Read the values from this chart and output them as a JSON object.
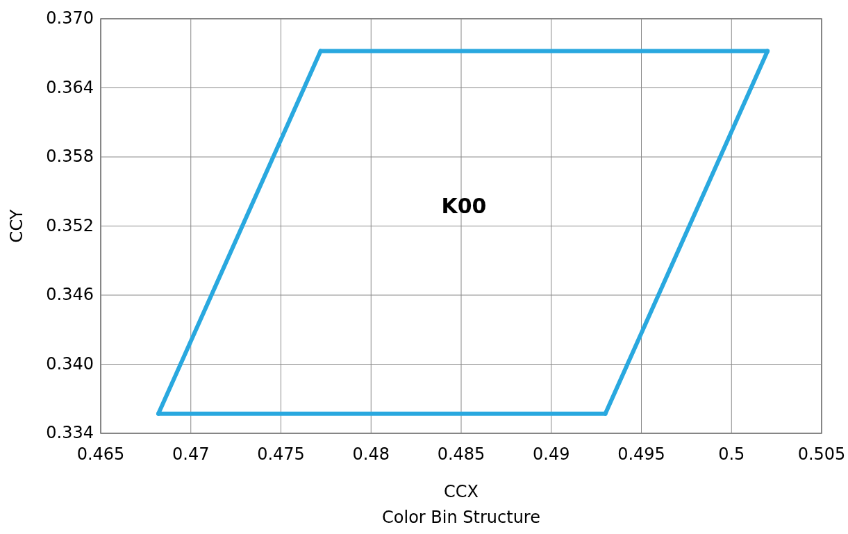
{
  "chart_data": {
    "type": "line",
    "title": "Color Bin Structure",
    "xlabel": "CCX",
    "ylabel": "CCY",
    "series": [
      {
        "color": "#29a8df",
        "x": [
          0.4682,
          0.4772
        ],
        "values": [
          0.3357,
          0.3672
        ]
      },
      {
        "color": "#29a8df",
        "x": [
          0.4772,
          0.502
        ],
        "values": [
          0.3672,
          0.3672
        ]
      },
      {
        "color": "#29a8df",
        "x": [
          0.493,
          0.502
        ],
        "values": [
          0.3357,
          0.3672
        ]
      },
      {
        "color": "#29a8df",
        "x": [
          0.4682,
          0.493
        ],
        "values": [
          0.3357,
          0.3357
        ]
      }
    ],
    "xlim": [
      0.465,
      0.505
    ],
    "xticks": [
      0.465,
      0.47,
      0.475,
      0.48,
      0.485,
      0.49,
      0.495,
      0.5,
      0.505
    ],
    "ylim": [
      0.334,
      0.37
    ],
    "yticks": [
      0.334,
      {
        "value": 0.34,
        "label": "0.340"
      },
      0.346,
      0.352,
      0.358,
      0.364,
      {
        "value": 0.37,
        "label": "0.370"
      }
    ],
    "grid": true,
    "marker": "none",
    "line_style": "solid",
    "annotations": [
      "K00"
    ]
  }
}
